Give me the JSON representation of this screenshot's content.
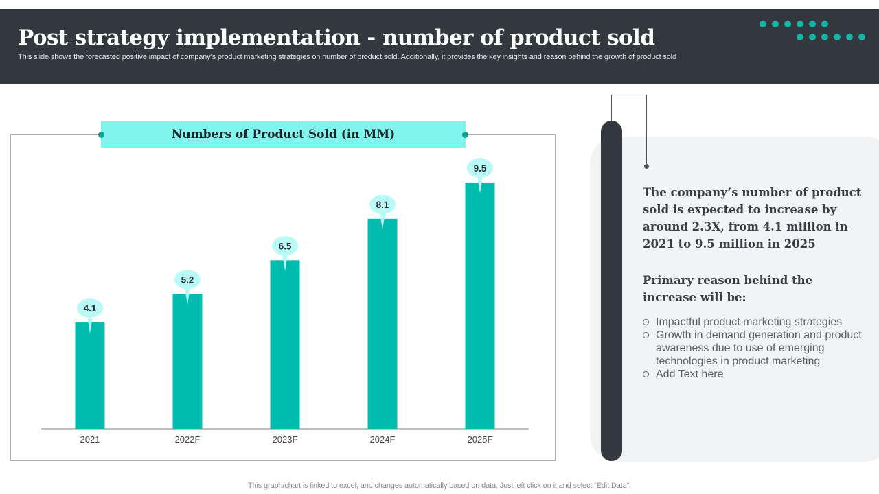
{
  "header": {
    "title": "Post strategy implementation - number of product sold",
    "subtitle": "This slide shows the forecasted positive impact of company’s product marketing strategies on number of product sold. Additionally, it provides the key insights and reason behind the growth of product sold"
  },
  "colors": {
    "bar": "#00bcae",
    "label_bubble": "#b9faf7",
    "accent_dots": "#13b5a6",
    "header_bg": "#33373e"
  },
  "chart_data": {
    "type": "bar",
    "title": "Numbers of Product Sold (in MM)",
    "categories": [
      "2021",
      "2022F",
      "2023F",
      "2024F",
      "2025F"
    ],
    "values": [
      4.1,
      5.2,
      6.5,
      8.1,
      9.5
    ],
    "value_labels": [
      "4.1",
      "5.2",
      "6.5",
      "8.1",
      "9.5"
    ],
    "xlabel": "",
    "ylabel": "",
    "ylim": [
      0,
      10
    ],
    "grid": false,
    "legend": "none"
  },
  "insights": {
    "summary": "The company’s number of product sold is expected to increase by around 2.3X, from 4.1 million in 2021 to 9.5 million in 2025",
    "reason_title": "Primary reason behind the increase will be:",
    "reasons": [
      "Impactful product marketing strategies",
      "Growth in demand generation and product awareness due to use of emerging technologies in product marketing",
      "Add Text here"
    ]
  },
  "footer": {
    "note": "This graph/chart is linked to excel,  and changes automatically based on data. Just left click on it and select “Edit Data”."
  }
}
